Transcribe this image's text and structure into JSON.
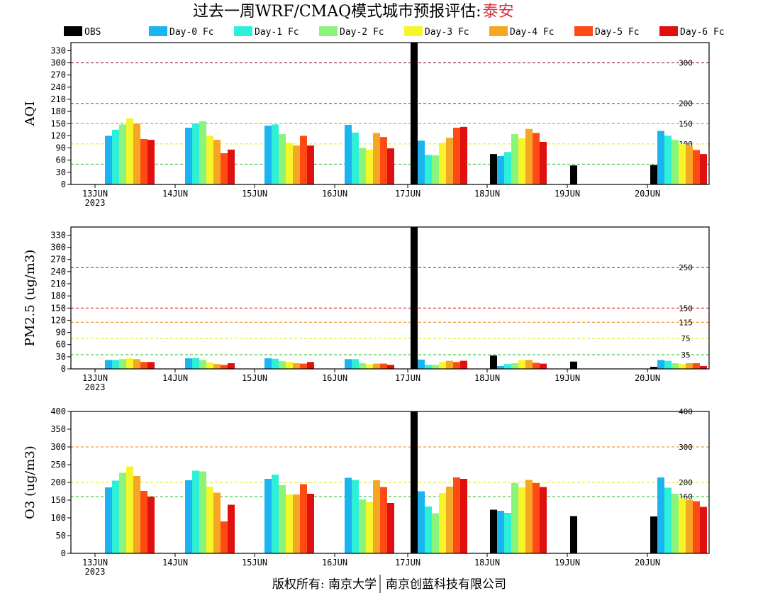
{
  "title": {
    "main": "过去一周WRF/CMAQ模式城市预报评估:",
    "city": "泰安"
  },
  "footer": {
    "left": "版权所有: 南京大学",
    "right": "南京创蓝科技有限公司"
  },
  "colors": {
    "OBS": "#000000",
    "Day-0 Fc": "#1ab4f0",
    "Day-1 Fc": "#2ef0d8",
    "Day-2 Fc": "#8af57a",
    "Day-3 Fc": "#f5f52a",
    "Day-4 Fc": "#f5a623",
    "Day-5 Fc": "#ff4a14",
    "Day-6 Fc": "#e01010"
  },
  "chart_data": [
    {
      "type": "bar",
      "ylabel": "AQI",
      "categories": [
        "13JUN",
        "14JUN",
        "15JUN",
        "16JUN",
        "17JUN",
        "18JUN",
        "19JUN",
        "20JUN"
      ],
      "first_category_sublabel": "2023",
      "ylim": [
        0,
        350
      ],
      "yticks": [
        0,
        30,
        60,
        90,
        120,
        150,
        180,
        210,
        240,
        270,
        300,
        330
      ],
      "thresholds": [
        {
          "value": 50,
          "label": "50",
          "color": "#22bb22"
        },
        {
          "value": 100,
          "label": "100",
          "color": "#e6e600"
        },
        {
          "value": 150,
          "label": "150",
          "color": "#f08000"
        },
        {
          "value": 200,
          "label": "200",
          "color": "#dd1111"
        },
        {
          "value": 300,
          "label": "300",
          "color": "#8b1030"
        }
      ],
      "series": [
        {
          "name": "OBS",
          "values": [
            null,
            null,
            null,
            null,
            350,
            75,
            47,
            48
          ]
        },
        {
          "name": "Day-0 Fc",
          "values": [
            120,
            140,
            145,
            147,
            108,
            70,
            null,
            132
          ]
        },
        {
          "name": "Day-1 Fc",
          "values": [
            135,
            150,
            148,
            128,
            73,
            80,
            null,
            120
          ]
        },
        {
          "name": "Day-2 Fc",
          "values": [
            148,
            156,
            124,
            90,
            72,
            124,
            null,
            110
          ]
        },
        {
          "name": "Day-3 Fc",
          "values": [
            163,
            120,
            103,
            86,
            103,
            114,
            null,
            100
          ]
        },
        {
          "name": "Day-4 Fc",
          "values": [
            150,
            110,
            96,
            127,
            115,
            137,
            null,
            95
          ]
        },
        {
          "name": "Day-5 Fc",
          "values": [
            112,
            77,
            120,
            117,
            140,
            127,
            null,
            85
          ]
        },
        {
          "name": "Day-6 Fc",
          "values": [
            110,
            86,
            96,
            89,
            142,
            105,
            null,
            75
          ]
        }
      ]
    },
    {
      "type": "bar",
      "ylabel": "PM2.5 (ug/m3)",
      "categories": [
        "13JUN",
        "14JUN",
        "15JUN",
        "16JUN",
        "17JUN",
        "18JUN",
        "19JUN",
        "20JUN"
      ],
      "first_category_sublabel": "2023",
      "ylim": [
        0,
        350
      ],
      "yticks": [
        0,
        30,
        60,
        90,
        120,
        150,
        180,
        210,
        240,
        270,
        300,
        330
      ],
      "thresholds": [
        {
          "value": 35,
          "label": "35",
          "color": "#22bb22"
        },
        {
          "value": 75,
          "label": "75",
          "color": "#e6e600"
        },
        {
          "value": 115,
          "label": "115",
          "color": "#f08000"
        },
        {
          "value": 150,
          "label": "150",
          "color": "#dd1111"
        },
        {
          "value": 250,
          "label": "250",
          "color": "#8b1030"
        }
      ],
      "series": [
        {
          "name": "OBS",
          "values": [
            null,
            null,
            null,
            null,
            350,
            33,
            18,
            5
          ]
        },
        {
          "name": "Day-0 Fc",
          "values": [
            22,
            26,
            26,
            24,
            23,
            7,
            null,
            22
          ]
        },
        {
          "name": "Day-1 Fc",
          "values": [
            22,
            27,
            25,
            24,
            10,
            12,
            null,
            20
          ]
        },
        {
          "name": "Day-2 Fc",
          "values": [
            24,
            22,
            19,
            14,
            10,
            14,
            null,
            14
          ]
        },
        {
          "name": "Day-3 Fc",
          "values": [
            26,
            16,
            17,
            11,
            17,
            22,
            null,
            12
          ]
        },
        {
          "name": "Day-4 Fc",
          "values": [
            24,
            12,
            14,
            13,
            20,
            22,
            null,
            14
          ]
        },
        {
          "name": "Day-5 Fc",
          "values": [
            17,
            10,
            13,
            13,
            17,
            15,
            null,
            14
          ]
        },
        {
          "name": "Day-6 Fc",
          "values": [
            17,
            14,
            17,
            10,
            20,
            13,
            null,
            7
          ]
        }
      ]
    },
    {
      "type": "bar",
      "ylabel": "O3 (ug/m3)",
      "categories": [
        "13JUN",
        "14JUN",
        "15JUN",
        "16JUN",
        "17JUN",
        "18JUN",
        "19JUN",
        "20JUN"
      ],
      "first_category_sublabel": "2023",
      "ylim": [
        0,
        400
      ],
      "yticks": [
        0,
        50,
        100,
        150,
        200,
        250,
        300,
        350,
        400
      ],
      "thresholds": [
        {
          "value": 160,
          "label": "160",
          "color": "#22bb22"
        },
        {
          "value": 200,
          "label": "200",
          "color": "#e6e600"
        },
        {
          "value": 300,
          "label": "300",
          "color": "#f08000"
        },
        {
          "value": 400,
          "label": "400",
          "color": "#dd1111"
        }
      ],
      "series": [
        {
          "name": "OBS",
          "values": [
            null,
            null,
            null,
            null,
            400,
            123,
            105,
            104
          ]
        },
        {
          "name": "Day-0 Fc",
          "values": [
            186,
            206,
            210,
            213,
            175,
            120,
            null,
            214
          ]
        },
        {
          "name": "Day-1 Fc",
          "values": [
            205,
            233,
            222,
            207,
            132,
            114,
            null,
            185
          ]
        },
        {
          "name": "Day-2 Fc",
          "values": [
            227,
            231,
            192,
            152,
            113,
            198,
            null,
            168
          ]
        },
        {
          "name": "Day-3 Fc",
          "values": [
            245,
            188,
            166,
            145,
            170,
            186,
            null,
            155
          ]
        },
        {
          "name": "Day-4 Fc",
          "values": [
            218,
            171,
            166,
            206,
            188,
            207,
            null,
            150
          ]
        },
        {
          "name": "Day-5 Fc",
          "values": [
            176,
            90,
            195,
            187,
            214,
            198,
            null,
            147
          ]
        },
        {
          "name": "Day-6 Fc",
          "values": [
            160,
            137,
            168,
            142,
            210,
            187,
            null,
            131
          ]
        }
      ]
    }
  ]
}
